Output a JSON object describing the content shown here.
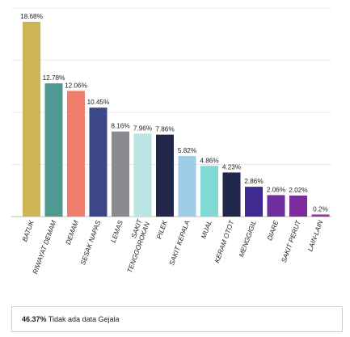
{
  "chart_data": {
    "type": "bar",
    "categories": [
      "BATUK",
      "RIWAYAT DEMAM",
      "DEMAM",
      "SESAK NAPAS",
      "LEMAS",
      "SAKIT TENGGOROKAN",
      "PILEK",
      "SAKIT KEPALA",
      "MUAL",
      "KERAM OTOT",
      "MENGGIGIL",
      "DIARE",
      "SAKIT PERUT",
      "LAIN-LAIN"
    ],
    "values": [
      18.68,
      12.78,
      12.06,
      10.45,
      8.16,
      7.96,
      7.86,
      5.82,
      4.86,
      4.23,
      2.86,
      2.06,
      2.02,
      0.2
    ],
    "value_labels": [
      "18.68%",
      "12.78%",
      "12.06%",
      "10.45%",
      "8.16%",
      "7.96%",
      "7.86%",
      "5.82%",
      "4.86%",
      "4.23%",
      "2.86%",
      "2.06%",
      "2.02%",
      "0.2%"
    ],
    "colors": [
      "#cdb553",
      "#4e9a93",
      "#ef7d6b",
      "#3c4787",
      "#8a8b91",
      "#bbe5e3",
      "#22264a",
      "#9ecde6",
      "#7fd9d4",
      "#21264b",
      "#3e2a91",
      "#6f2ea0",
      "#7d2a9a",
      "#9a2fa6"
    ],
    "ylim": [
      0,
      20
    ],
    "grid": true,
    "legend": "none"
  },
  "footer": {
    "value": "46.37%",
    "text": "Tidak ada data Gejala"
  }
}
